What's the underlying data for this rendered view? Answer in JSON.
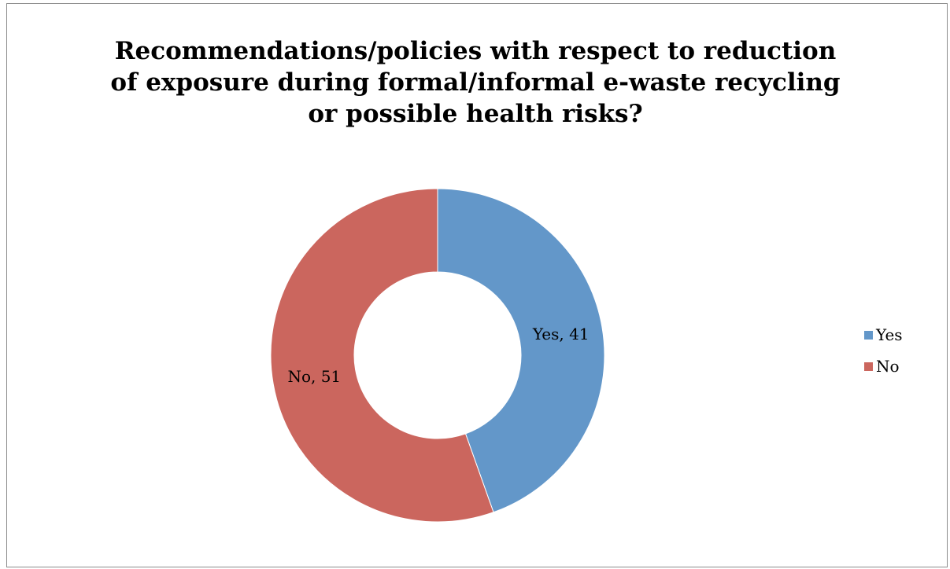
{
  "chart_data": {
    "type": "pie",
    "variant": "donut",
    "title_lines": [
      "Recommendations/policies with respect to reduction",
      "of exposure during formal/informal e-waste recycling",
      "or possible health risks?"
    ],
    "categories": [
      "Yes",
      "No"
    ],
    "values": [
      41,
      51
    ],
    "colors": [
      "#6397c9",
      "#cb665e"
    ],
    "data_labels": [
      "Yes, 41",
      "No, 51"
    ],
    "legend": {
      "position": "right",
      "entries": [
        "Yes",
        "No"
      ]
    }
  }
}
